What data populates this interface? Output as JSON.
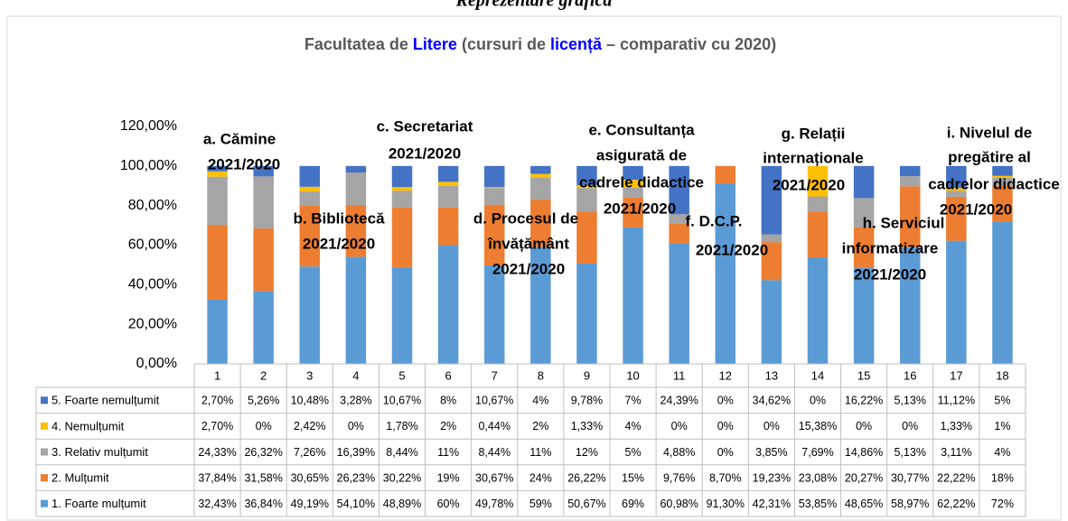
{
  "heading": "Reprezentare grafică",
  "chart_data": {
    "type": "stacked_bar",
    "title_parts": [
      "Facultatea de ",
      "Litere",
      " (cursuri de ",
      "licență",
      " – comparativ cu 2020)"
    ],
    "categories": [
      "1",
      "2",
      "3",
      "4",
      "5",
      "6",
      "7",
      "8",
      "9",
      "10",
      "11",
      "12",
      "13",
      "14",
      "15",
      "16",
      "17",
      "18"
    ],
    "ylim": [
      0,
      120
    ],
    "yticks": [
      {
        "value": 0,
        "label": "0,00%"
      },
      {
        "value": 20,
        "label": "20,00%"
      },
      {
        "value": 40,
        "label": "40,00%"
      },
      {
        "value": 60,
        "label": "60,00%"
      },
      {
        "value": 80,
        "label": "80,00%"
      },
      {
        "value": 100,
        "label": "100,00%"
      },
      {
        "value": 120,
        "label": "120,00%"
      }
    ],
    "grid": false,
    "series": [
      {
        "name": "1. Foarte mulțumit",
        "color": "#5b9bd5",
        "values": [
          32.43,
          36.84,
          49.19,
          54.1,
          48.89,
          60,
          49.78,
          59,
          50.67,
          69,
          60.98,
          91.3,
          42.31,
          53.85,
          48.65,
          58.97,
          62.22,
          72
        ],
        "value_labels": [
          "32,43%",
          "36,84%",
          "49,19%",
          "54,10%",
          "48,89%",
          "60%",
          "49,78%",
          "59%",
          "50,67%",
          "69%",
          "60,98%",
          "91,30%",
          "42,31%",
          "53,85%",
          "48,65%",
          "58,97%",
          "62,22%",
          "72%"
        ]
      },
      {
        "name": "2. Mulțumit",
        "color": "#ed7d31",
        "values": [
          37.84,
          31.58,
          30.65,
          26.23,
          30.22,
          19,
          30.67,
          24,
          26.22,
          15,
          9.76,
          8.7,
          19.23,
          23.08,
          20.27,
          30.77,
          22.22,
          18
        ],
        "value_labels": [
          "37,84%",
          "31,58%",
          "30,65%",
          "26,23%",
          "30,22%",
          "19%",
          "30,67%",
          "24%",
          "26,22%",
          "15%",
          "9,76%",
          "8,70%",
          "19,23%",
          "23,08%",
          "20,27%",
          "30,77%",
          "22,22%",
          "18%"
        ]
      },
      {
        "name": "3. Relativ mulțumit",
        "color": "#a5a5a5",
        "values": [
          24.33,
          26.32,
          7.26,
          16.39,
          8.44,
          11,
          8.44,
          11,
          12,
          5,
          4.88,
          0,
          3.85,
          7.69,
          14.86,
          5.13,
          3.11,
          4
        ],
        "value_labels": [
          "24,33%",
          "26,32%",
          "7,26%",
          "16,39%",
          "8,44%",
          "11%",
          "8,44%",
          "11%",
          "12%",
          "5%",
          "4,88%",
          "0%",
          "3,85%",
          "7,69%",
          "14,86%",
          "5,13%",
          "3,11%",
          "4%"
        ]
      },
      {
        "name": "4. Nemulțumit",
        "color": "#ffc000",
        "values": [
          2.7,
          0,
          2.42,
          0,
          1.78,
          2,
          0.44,
          2,
          1.33,
          4,
          0,
          0,
          0,
          15.38,
          0,
          0,
          1.33,
          1
        ],
        "value_labels": [
          "2,70%",
          "0%",
          "2,42%",
          "0%",
          "1,78%",
          "2%",
          "0,44%",
          "2%",
          "1,33%",
          "4%",
          "0%",
          "0%",
          "0%",
          "15,38%",
          "0%",
          "0%",
          "1,33%",
          "1%"
        ]
      },
      {
        "name": "5. Foarte nemulțumit",
        "color": "#4472c4",
        "values": [
          2.7,
          5.26,
          10.48,
          3.28,
          10.67,
          8,
          10.67,
          4,
          9.78,
          7,
          24.39,
          0,
          34.62,
          0,
          16.22,
          5.13,
          11.12,
          5
        ],
        "value_labels": [
          "2,70%",
          "5,26%",
          "10,48%",
          "3,28%",
          "10,67%",
          "8%",
          "10,67%",
          "4%",
          "9,78%",
          "7%",
          "24,39%",
          "0%",
          "34,62%",
          "0%",
          "16,22%",
          "5,13%",
          "11,12%",
          "5%"
        ]
      }
    ],
    "annotations": [
      {
        "lines": [
          "a. Cămine"
        ],
        "period": "2021/2020"
      },
      {
        "lines": [
          "b. Bibliotecă"
        ],
        "period": "2021/2020"
      },
      {
        "lines": [
          "c. Secretariat"
        ],
        "period": "2021/2020"
      },
      {
        "lines": [
          "d. Procesul de",
          "învățământ"
        ],
        "period": "2021/2020"
      },
      {
        "lines": [
          "e. Consultanța",
          "asigurată de",
          "cadrele didactice"
        ],
        "period": "2021/2020"
      },
      {
        "lines": [
          "f. D.C.P."
        ],
        "period": "2021/2020"
      },
      {
        "lines": [
          "g. Relații",
          "internaționale"
        ],
        "period": "2021/2020"
      },
      {
        "lines": [
          "h. Serviciul",
          "informatizare"
        ],
        "period": "2021/2020"
      },
      {
        "lines": [
          "i. Nivelul de",
          "pregătire al",
          "cadrelor didactice"
        ],
        "period": "2021/2020"
      }
    ]
  }
}
